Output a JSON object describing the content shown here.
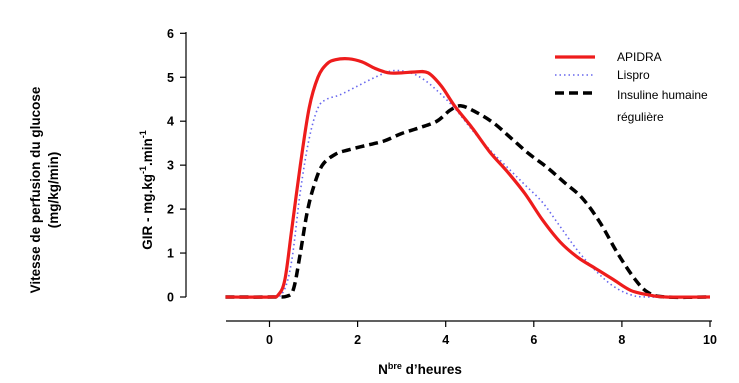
{
  "chart_data": {
    "type": "line",
    "xlim": [
      -1,
      10
    ],
    "ylim": [
      0,
      6
    ],
    "x_ticks": [
      "0",
      "2",
      "4",
      "6",
      "8",
      "10"
    ],
    "y_ticks": [
      "0",
      "1",
      "2",
      "3",
      "4",
      "5",
      "6"
    ],
    "ylabel_outer": [
      "Vitesse de perfusion du glucose",
      "(mg/kg/min)"
    ],
    "ylabel_inner": {
      "main": "GIR - mg.kg",
      "sup1": "-1",
      "mid": ".min",
      "sup2": "-1"
    },
    "xlabel": {
      "prefix": "N",
      "sup": "bre",
      "suffix": " d’heures"
    },
    "legend": {
      "position": "top-right",
      "entries": [
        "APIDRA",
        "Lispro",
        "Insuline humaine",
        "régulière"
      ]
    },
    "series": [
      {
        "name": "APIDRA",
        "color": "#ee1c1c",
        "style": "solid",
        "x": [
          -1,
          0,
          0.2,
          0.35,
          0.5,
          0.7,
          0.9,
          1.1,
          1.3,
          1.5,
          1.8,
          2.1,
          2.4,
          2.7,
          3.0,
          3.3,
          3.6,
          3.9,
          4.2,
          4.6,
          5.0,
          5.4,
          5.8,
          6.2,
          6.6,
          7.0,
          7.4,
          7.8,
          8.2,
          8.6,
          9.0,
          10
        ],
        "y": [
          0,
          0,
          0.05,
          0.4,
          1.5,
          3.0,
          4.3,
          5.0,
          5.3,
          5.4,
          5.42,
          5.35,
          5.2,
          5.1,
          5.1,
          5.12,
          5.1,
          4.8,
          4.35,
          3.85,
          3.3,
          2.85,
          2.35,
          1.75,
          1.25,
          0.9,
          0.65,
          0.4,
          0.15,
          0.05,
          0,
          0
        ]
      },
      {
        "name": "Lispro",
        "color": "#6666ee",
        "style": "dotted",
        "x": [
          -1,
          0,
          0.3,
          0.5,
          0.7,
          0.9,
          1.1,
          1.3,
          1.6,
          2.0,
          2.4,
          2.8,
          3.2,
          3.5,
          3.8,
          4.2,
          4.6,
          5.0,
          5.4,
          5.8,
          6.2,
          6.6,
          7.0,
          7.4,
          7.8,
          8.2,
          8.6,
          10
        ],
        "y": [
          0,
          0,
          0.1,
          0.8,
          2.4,
          3.6,
          4.3,
          4.5,
          4.6,
          4.8,
          5.0,
          5.15,
          5.1,
          4.95,
          4.7,
          4.3,
          3.8,
          3.35,
          2.95,
          2.55,
          2.15,
          1.6,
          1.05,
          0.6,
          0.25,
          0.05,
          0,
          0
        ]
      },
      {
        "name": "Insuline humaine régulière",
        "color": "#000000",
        "style": "dashed",
        "x": [
          -1,
          0,
          0.4,
          0.55,
          0.7,
          0.85,
          1.0,
          1.2,
          1.5,
          1.8,
          2.2,
          2.6,
          3.0,
          3.4,
          3.8,
          4.1,
          4.35,
          4.7,
          5.1,
          5.5,
          5.9,
          6.3,
          6.7,
          7.1,
          7.5,
          7.9,
          8.3,
          8.6,
          9.0,
          10
        ],
        "y": [
          0,
          0,
          0.02,
          0.2,
          1.0,
          1.9,
          2.5,
          3.0,
          3.25,
          3.35,
          3.45,
          3.55,
          3.72,
          3.85,
          4.0,
          4.25,
          4.35,
          4.2,
          3.95,
          3.6,
          3.25,
          2.95,
          2.6,
          2.25,
          1.7,
          1.0,
          0.4,
          0.1,
          0,
          0
        ]
      }
    ]
  }
}
